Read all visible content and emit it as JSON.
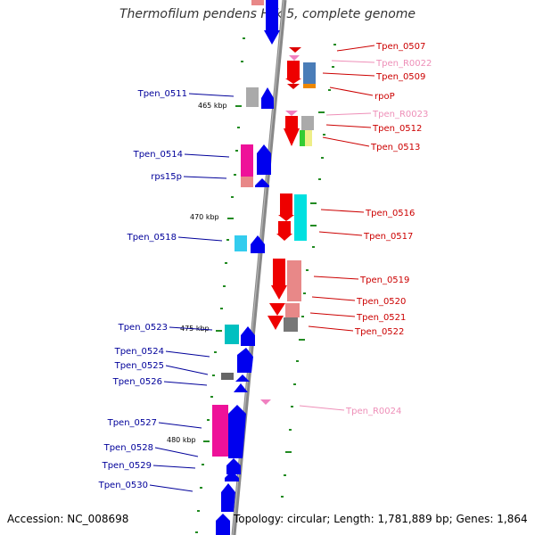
{
  "title": "Thermofilum pendens Hrk 5, complete genome",
  "footer": {
    "accession": "Accession: NC_008698",
    "summary": "Topology: circular; Length: 1,781,889 bp; Genes: 1,864"
  },
  "colors": {
    "left_label": "#00009a",
    "right_label": "#cc0000",
    "rna_label": "#ee8fb8",
    "backbone": "#888888",
    "tick": "#228b22"
  },
  "kbp_marks": [
    "465 kbp",
    "470 kbp",
    "475 kbp",
    "480 kbp"
  ],
  "gene_labels_left": [
    "Tpen_0511",
    "Tpen_0514",
    "rps15p",
    "Tpen_0518",
    "Tpen_0523",
    "Tpen_0524",
    "Tpen_0525",
    "Tpen_0526",
    "Tpen_0527",
    "Tpen_0528",
    "Tpen_0529",
    "Tpen_0530"
  ],
  "gene_labels_right": [
    "Tpen_0507",
    "Tpen_R0022",
    "Tpen_0509",
    "rpoP",
    "Tpen_R0023",
    "Tpen_0512",
    "Tpen_0513",
    "Tpen_0516",
    "Tpen_0517",
    "Tpen_0519",
    "Tpen_0520",
    "Tpen_0521",
    "Tpen_0522",
    "Tpen_R0024"
  ]
}
